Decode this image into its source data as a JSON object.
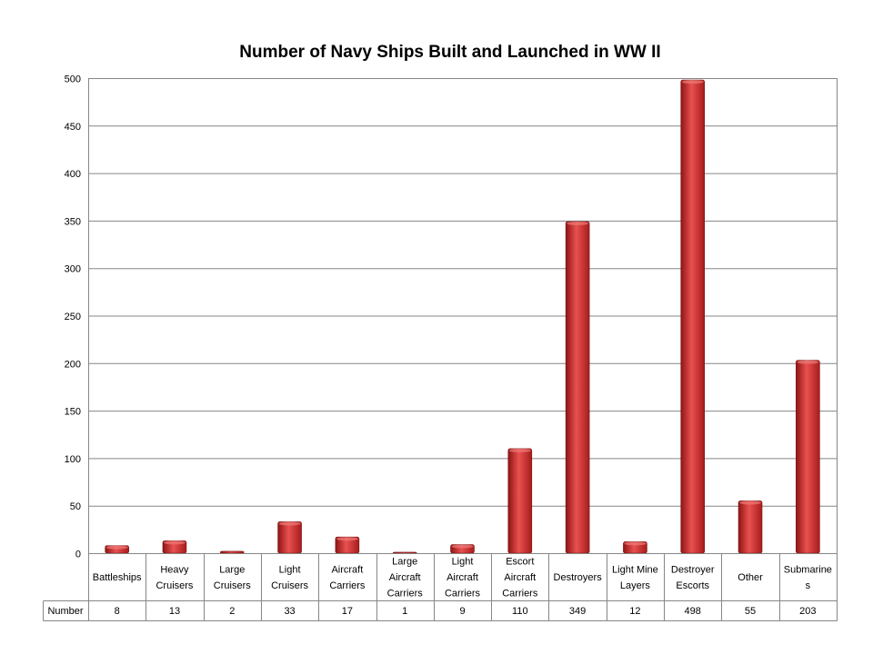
{
  "chart_data": {
    "type": "bar",
    "title": "Number of Navy Ships Built and Launched in WW II",
    "xlabel": "",
    "ylabel": "",
    "ylim": [
      0,
      500
    ],
    "yticks": [
      0,
      50,
      100,
      150,
      200,
      250,
      300,
      350,
      400,
      450,
      500
    ],
    "grid": true,
    "legend": "none",
    "series_name": "Number",
    "categories": [
      [
        "Battleships"
      ],
      [
        "Heavy",
        "Cruisers"
      ],
      [
        "Large",
        "Cruisers"
      ],
      [
        "Light",
        "Cruisers"
      ],
      [
        "Aircraft",
        "Carriers"
      ],
      [
        "Large",
        "Aircraft",
        "Carriers"
      ],
      [
        "Light",
        "Aircraft",
        "Carriers"
      ],
      [
        "Escort",
        "Aircraft",
        "Carriers"
      ],
      [
        "Destroyers"
      ],
      [
        "Light Mine",
        "Layers"
      ],
      [
        "Destroyer",
        "Escorts"
      ],
      [
        "Other"
      ],
      [
        "Submarine",
        "s"
      ]
    ],
    "values": [
      8,
      13,
      2,
      33,
      17,
      1,
      9,
      110,
      349,
      12,
      498,
      55,
      203
    ],
    "value_labels": [
      "8",
      "13",
      "2",
      "33",
      "17",
      "1",
      "9",
      "110",
      "349",
      "12",
      "498",
      "55",
      "203"
    ],
    "colors": {
      "bar_light": "#e8514f",
      "bar_mid": "#c92a2a",
      "bar_dark": "#8e1414",
      "grid": "#868686"
    }
  }
}
